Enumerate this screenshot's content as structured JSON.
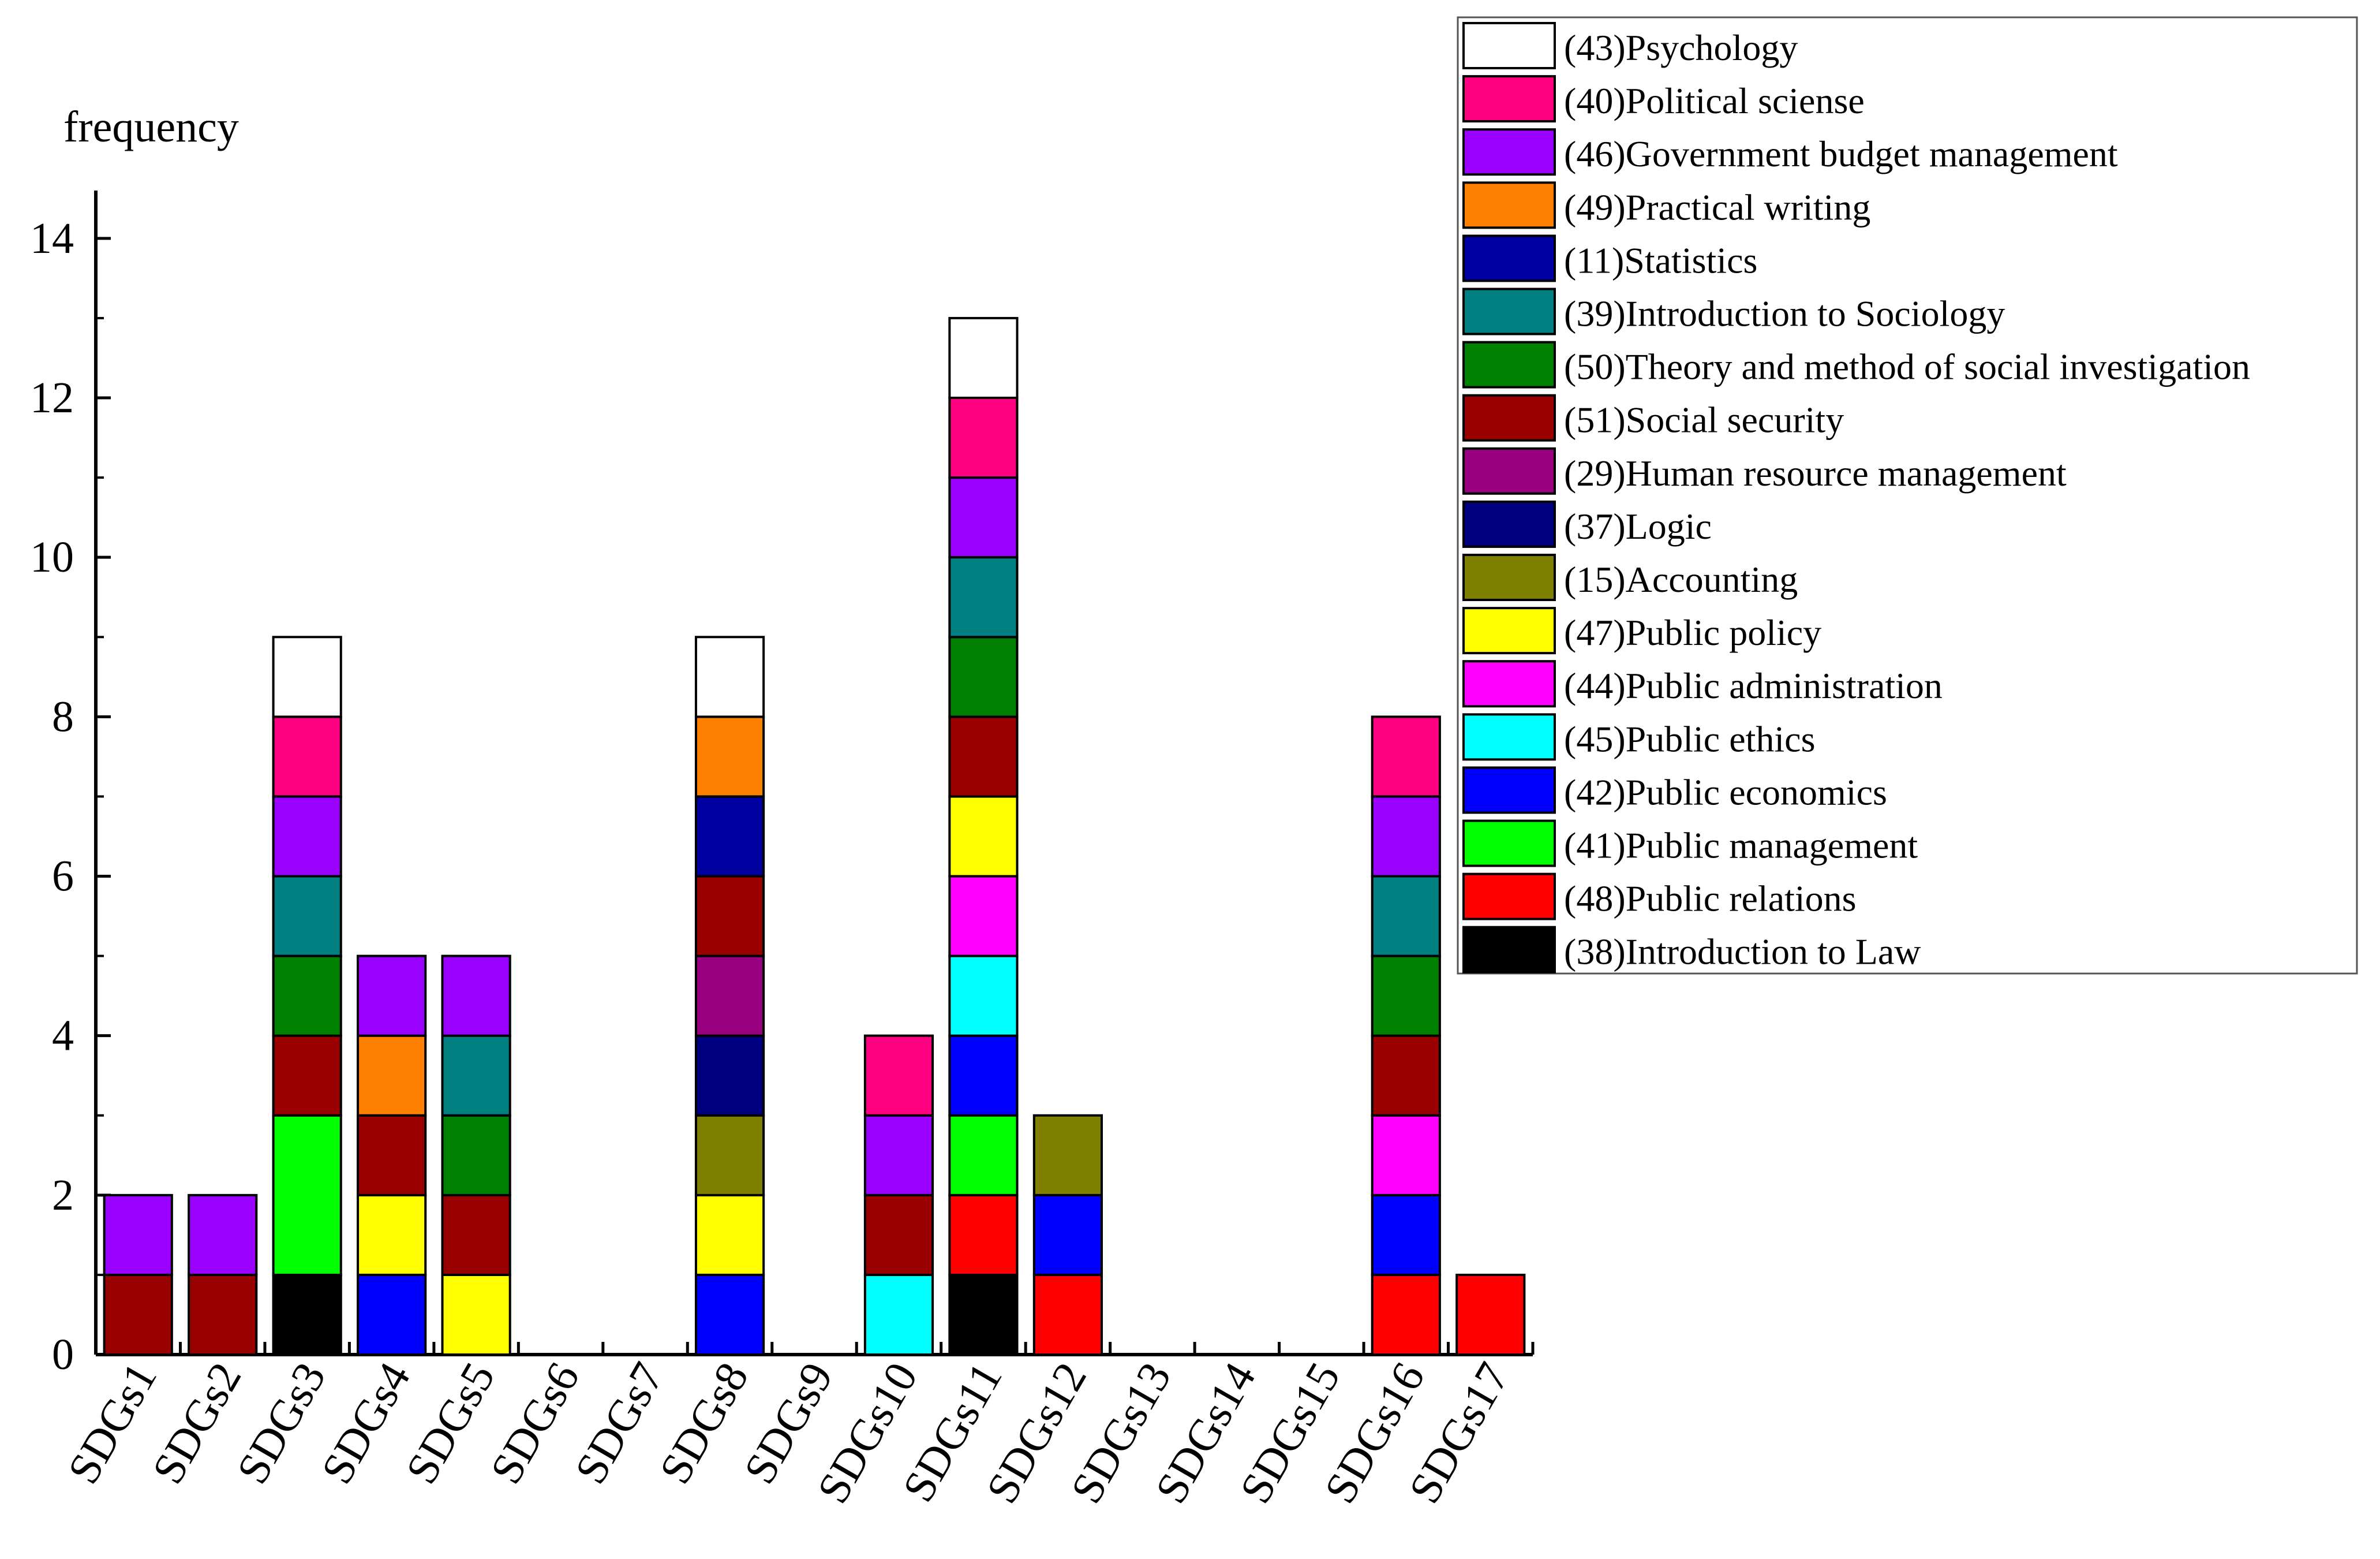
{
  "chart_data": {
    "type": "bar",
    "stacked": true,
    "title": "",
    "ylabel": "frequency",
    "xlabel": "",
    "ylim": [
      0,
      14
    ],
    "yticks": [
      0,
      2,
      4,
      6,
      8,
      10,
      12,
      14
    ],
    "categories": [
      "SDGs1",
      "SDGs2",
      "SDGs3",
      "SDGs4",
      "SDGs5",
      "SDGs6",
      "SDGs7",
      "SDGs8",
      "SDGs9",
      "SDGs10",
      "SDGs11",
      "SDGs12",
      "SDGs13",
      "SDGs14",
      "SDGs15",
      "SDGs16",
      "SDGs17"
    ],
    "legend_position": "top-right",
    "series": [
      {
        "name": "(38)Introduction to Law",
        "color": "#000000",
        "values": [
          0,
          0,
          1,
          0,
          0,
          0,
          0,
          0,
          0,
          0,
          1,
          0,
          0,
          0,
          0,
          0,
          0
        ]
      },
      {
        "name": "(48)Public relations",
        "color": "#ff0000",
        "values": [
          0,
          0,
          0,
          0,
          0,
          0,
          0,
          0,
          0,
          0,
          1,
          1,
          0,
          0,
          0,
          1,
          1
        ]
      },
      {
        "name": "(41)Public management",
        "color": "#00ff00",
        "values": [
          0,
          0,
          2,
          0,
          0,
          0,
          0,
          0,
          0,
          0,
          1,
          0,
          0,
          0,
          0,
          0,
          0
        ]
      },
      {
        "name": "(42)Public economics",
        "color": "#0000ff",
        "values": [
          0,
          0,
          0,
          1,
          0,
          0,
          0,
          1,
          0,
          0,
          1,
          1,
          0,
          0,
          0,
          1,
          0
        ]
      },
      {
        "name": "(45)Public ethics",
        "color": "#00ffff",
        "values": [
          0,
          0,
          0,
          0,
          0,
          0,
          0,
          0,
          0,
          1,
          1,
          0,
          0,
          0,
          0,
          0,
          0
        ]
      },
      {
        "name": "(44)Public administration",
        "color": "#ff00ff",
        "values": [
          0,
          0,
          0,
          0,
          0,
          0,
          0,
          0,
          0,
          0,
          1,
          0,
          0,
          0,
          0,
          1,
          0
        ]
      },
      {
        "name": "(47)Public policy",
        "color": "#ffff00",
        "values": [
          0,
          0,
          0,
          1,
          1,
          0,
          0,
          1,
          0,
          0,
          1,
          0,
          0,
          0,
          0,
          0,
          0
        ]
      },
      {
        "name": "(15)Accounting",
        "color": "#808000",
        "values": [
          0,
          0,
          0,
          0,
          0,
          0,
          0,
          1,
          0,
          0,
          0,
          1,
          0,
          0,
          0,
          0,
          0
        ]
      },
      {
        "name": "(37)Logic",
        "color": "#000080",
        "values": [
          0,
          0,
          0,
          0,
          0,
          0,
          0,
          1,
          0,
          0,
          0,
          0,
          0,
          0,
          0,
          0,
          0
        ]
      },
      {
        "name": "(29)Human resource management",
        "color": "#990080",
        "values": [
          0,
          0,
          0,
          0,
          0,
          0,
          0,
          1,
          0,
          0,
          0,
          0,
          0,
          0,
          0,
          0,
          0
        ]
      },
      {
        "name": "(51)Social security",
        "color": "#990000",
        "values": [
          1,
          1,
          1,
          1,
          1,
          0,
          0,
          1,
          0,
          1,
          1,
          0,
          0,
          0,
          0,
          1,
          0
        ]
      },
      {
        "name": "(50)Theory and method of social investigation",
        "color": "#008000",
        "values": [
          0,
          0,
          1,
          0,
          1,
          0,
          0,
          0,
          0,
          0,
          1,
          0,
          0,
          0,
          0,
          1,
          0
        ]
      },
      {
        "name": "(39)Introduction to Sociology",
        "color": "#008080",
        "values": [
          0,
          0,
          1,
          0,
          1,
          0,
          0,
          0,
          0,
          0,
          1,
          0,
          0,
          0,
          0,
          1,
          0
        ]
      },
      {
        "name": "(11)Statistics",
        "color": "#0000a0",
        "values": [
          0,
          0,
          0,
          0,
          0,
          0,
          0,
          1,
          0,
          0,
          0,
          0,
          0,
          0,
          0,
          0,
          0
        ]
      },
      {
        "name": "(49)Practical writing",
        "color": "#ff8000",
        "values": [
          0,
          0,
          0,
          1,
          0,
          0,
          0,
          1,
          0,
          0,
          0,
          0,
          0,
          0,
          0,
          0,
          0
        ]
      },
      {
        "name": "(46)Government budget management",
        "color": "#9900ff",
        "values": [
          1,
          1,
          1,
          1,
          1,
          0,
          0,
          0,
          0,
          1,
          1,
          0,
          0,
          0,
          0,
          1,
          0
        ]
      },
      {
        "name": "(40)Political sciense",
        "color": "#ff0080",
        "values": [
          0,
          0,
          1,
          0,
          0,
          0,
          0,
          0,
          0,
          1,
          1,
          0,
          0,
          0,
          0,
          1,
          0
        ]
      },
      {
        "name": "(43)Psychology",
        "color": "#ffffff",
        "values": [
          0,
          0,
          1,
          0,
          0,
          0,
          0,
          1,
          0,
          0,
          1,
          0,
          0,
          0,
          0,
          0,
          0
        ]
      }
    ]
  }
}
